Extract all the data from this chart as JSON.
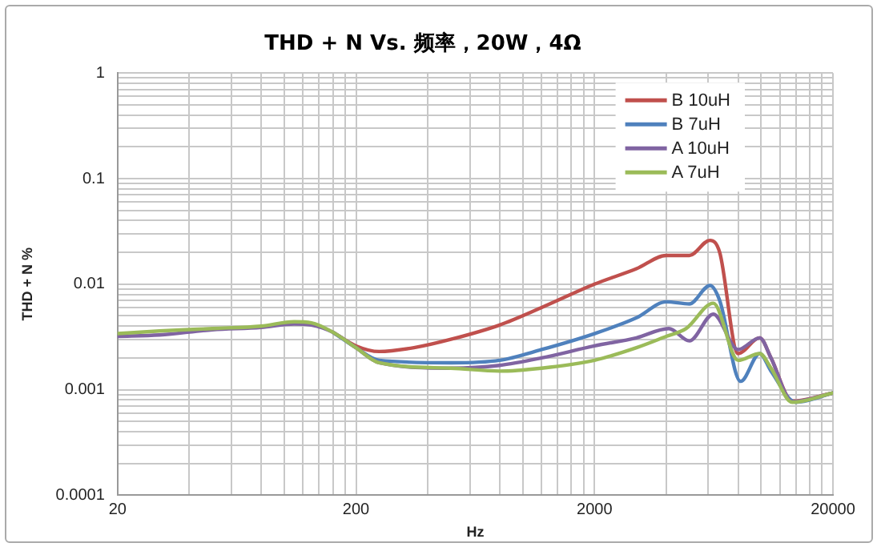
{
  "chart_data": {
    "type": "line",
    "title": "THD + N Vs. 频率，20W，4Ω",
    "xlabel": "Hz",
    "ylabel": "THD + N %",
    "log": "xy",
    "grid": true,
    "legend": "top right",
    "marker": "none",
    "line_style": "solid",
    "xlim": [
      20,
      20000
    ],
    "ylim": [
      0.0001,
      1
    ],
    "xticks": [
      20,
      {
        "value": 40,
        "label": null
      },
      {
        "value": 60,
        "label": null
      },
      {
        "value": 80,
        "label": null
      },
      {
        "value": 100,
        "label": null
      },
      {
        "value": 120,
        "label": null
      },
      {
        "value": 140,
        "label": null
      },
      {
        "value": 160,
        "label": null
      },
      {
        "value": 180,
        "label": null
      },
      200,
      {
        "value": 400,
        "label": null
      },
      {
        "value": 600,
        "label": null
      },
      {
        "value": 800,
        "label": null
      },
      {
        "value": 1000,
        "label": null
      },
      {
        "value": 1200,
        "label": null
      },
      {
        "value": 1400,
        "label": null
      },
      {
        "value": 1600,
        "label": null
      },
      {
        "value": 1800,
        "label": null
      },
      2000,
      {
        "value": 4000,
        "label": null
      },
      {
        "value": 6000,
        "label": null
      },
      {
        "value": 8000,
        "label": null
      },
      {
        "value": 10000,
        "label": null
      },
      {
        "value": 12000,
        "label": null
      },
      {
        "value": 14000,
        "label": null
      },
      {
        "value": 16000,
        "label": null
      },
      {
        "value": 18000,
        "label": null
      },
      20000
    ],
    "yticks": [
      0.0001,
      {
        "value": 0.0002,
        "label": null
      },
      {
        "value": 0.0003,
        "label": null
      },
      {
        "value": 0.0004,
        "label": null
      },
      {
        "value": 0.0005,
        "label": null
      },
      {
        "value": 0.0006,
        "label": null
      },
      {
        "value": 0.0007,
        "label": null
      },
      {
        "value": 0.0008,
        "label": null
      },
      {
        "value": 0.0009,
        "label": null
      },
      0.001,
      {
        "value": 0.002,
        "label": null
      },
      {
        "value": 0.003,
        "label": null
      },
      {
        "value": 0.004,
        "label": null
      },
      {
        "value": 0.005,
        "label": null
      },
      {
        "value": 0.006,
        "label": null
      },
      {
        "value": 0.007,
        "label": null
      },
      {
        "value": 0.008,
        "label": null
      },
      {
        "value": 0.009,
        "label": null
      },
      0.01,
      {
        "value": 0.02,
        "label": null
      },
      {
        "value": 0.03,
        "label": null
      },
      {
        "value": 0.04,
        "label": null
      },
      {
        "value": 0.05,
        "label": null
      },
      {
        "value": 0.06,
        "label": null
      },
      {
        "value": 0.07,
        "label": null
      },
      {
        "value": 0.08,
        "label": null
      },
      {
        "value": 0.09,
        "label": null
      },
      0.1,
      {
        "value": 0.2,
        "label": null
      },
      {
        "value": 0.3,
        "label": null
      },
      {
        "value": 0.4,
        "label": null
      },
      {
        "value": 0.5,
        "label": null
      },
      {
        "value": 0.6,
        "label": null
      },
      {
        "value": 0.7,
        "label": null
      },
      {
        "value": 0.8,
        "label": null
      },
      {
        "value": 0.9,
        "label": null
      },
      1
    ],
    "series": [
      {
        "name": "B 10uH",
        "color": "#c0504d",
        "x": [
          160,
          200,
          250,
          350,
          500,
          800,
          1200,
          2000,
          3000,
          4000,
          5000,
          6100,
          6700,
          8000,
          9860,
          11000,
          13500,
          20000
        ],
        "values": [
          0.0035,
          0.0026,
          0.0023,
          0.0025,
          0.003,
          0.0041,
          0.006,
          0.01,
          0.014,
          0.0187,
          0.0187,
          0.026,
          0.02,
          0.0022,
          0.0031,
          0.002,
          0.00078,
          0.00093
        ]
      },
      {
        "name": "B 7uH",
        "color": "#4f81bd",
        "x": [
          160,
          200,
          250,
          500,
          800,
          1200,
          2000,
          3000,
          4000,
          5000,
          6100,
          6700,
          8200,
          9860,
          11000,
          14000,
          20000
        ],
        "values": [
          0.0035,
          0.0025,
          0.0019,
          0.0018,
          0.0019,
          0.0024,
          0.0034,
          0.0048,
          0.0068,
          0.0065,
          0.0097,
          0.007,
          0.0012,
          0.0022,
          0.0015,
          0.00076,
          0.00093
        ]
      },
      {
        "name": "A 10uH",
        "color": "#8064a2",
        "x": [
          20,
          30,
          50,
          80,
          110,
          130,
          160,
          200,
          250,
          500,
          800,
          1200,
          2000,
          3000,
          4100,
          5000,
          6300,
          8000,
          9860,
          11000,
          13500,
          20000
        ],
        "values": [
          0.0032,
          0.0033,
          0.0037,
          0.0039,
          0.0042,
          0.0041,
          0.0035,
          0.0025,
          0.0018,
          0.0016,
          0.0017,
          0.002,
          0.0026,
          0.0031,
          0.0038,
          0.0029,
          0.0052,
          0.0024,
          0.0031,
          0.002,
          0.00077,
          0.00093
        ]
      },
      {
        "name": "A 7uH",
        "color": "#9bbb59",
        "x": [
          20,
          30,
          50,
          80,
          110,
          130,
          160,
          200,
          250,
          500,
          800,
          1200,
          2000,
          3000,
          4000,
          4850,
          6300,
          8000,
          9860,
          11000,
          13500,
          20000
        ],
        "values": [
          0.0034,
          0.0036,
          0.0038,
          0.004,
          0.0044,
          0.0043,
          0.0035,
          0.0025,
          0.0018,
          0.0016,
          0.0015,
          0.0016,
          0.0019,
          0.0025,
          0.0032,
          0.0038,
          0.0066,
          0.0019,
          0.0022,
          0.0016,
          0.00076,
          0.00093
        ]
      }
    ]
  }
}
